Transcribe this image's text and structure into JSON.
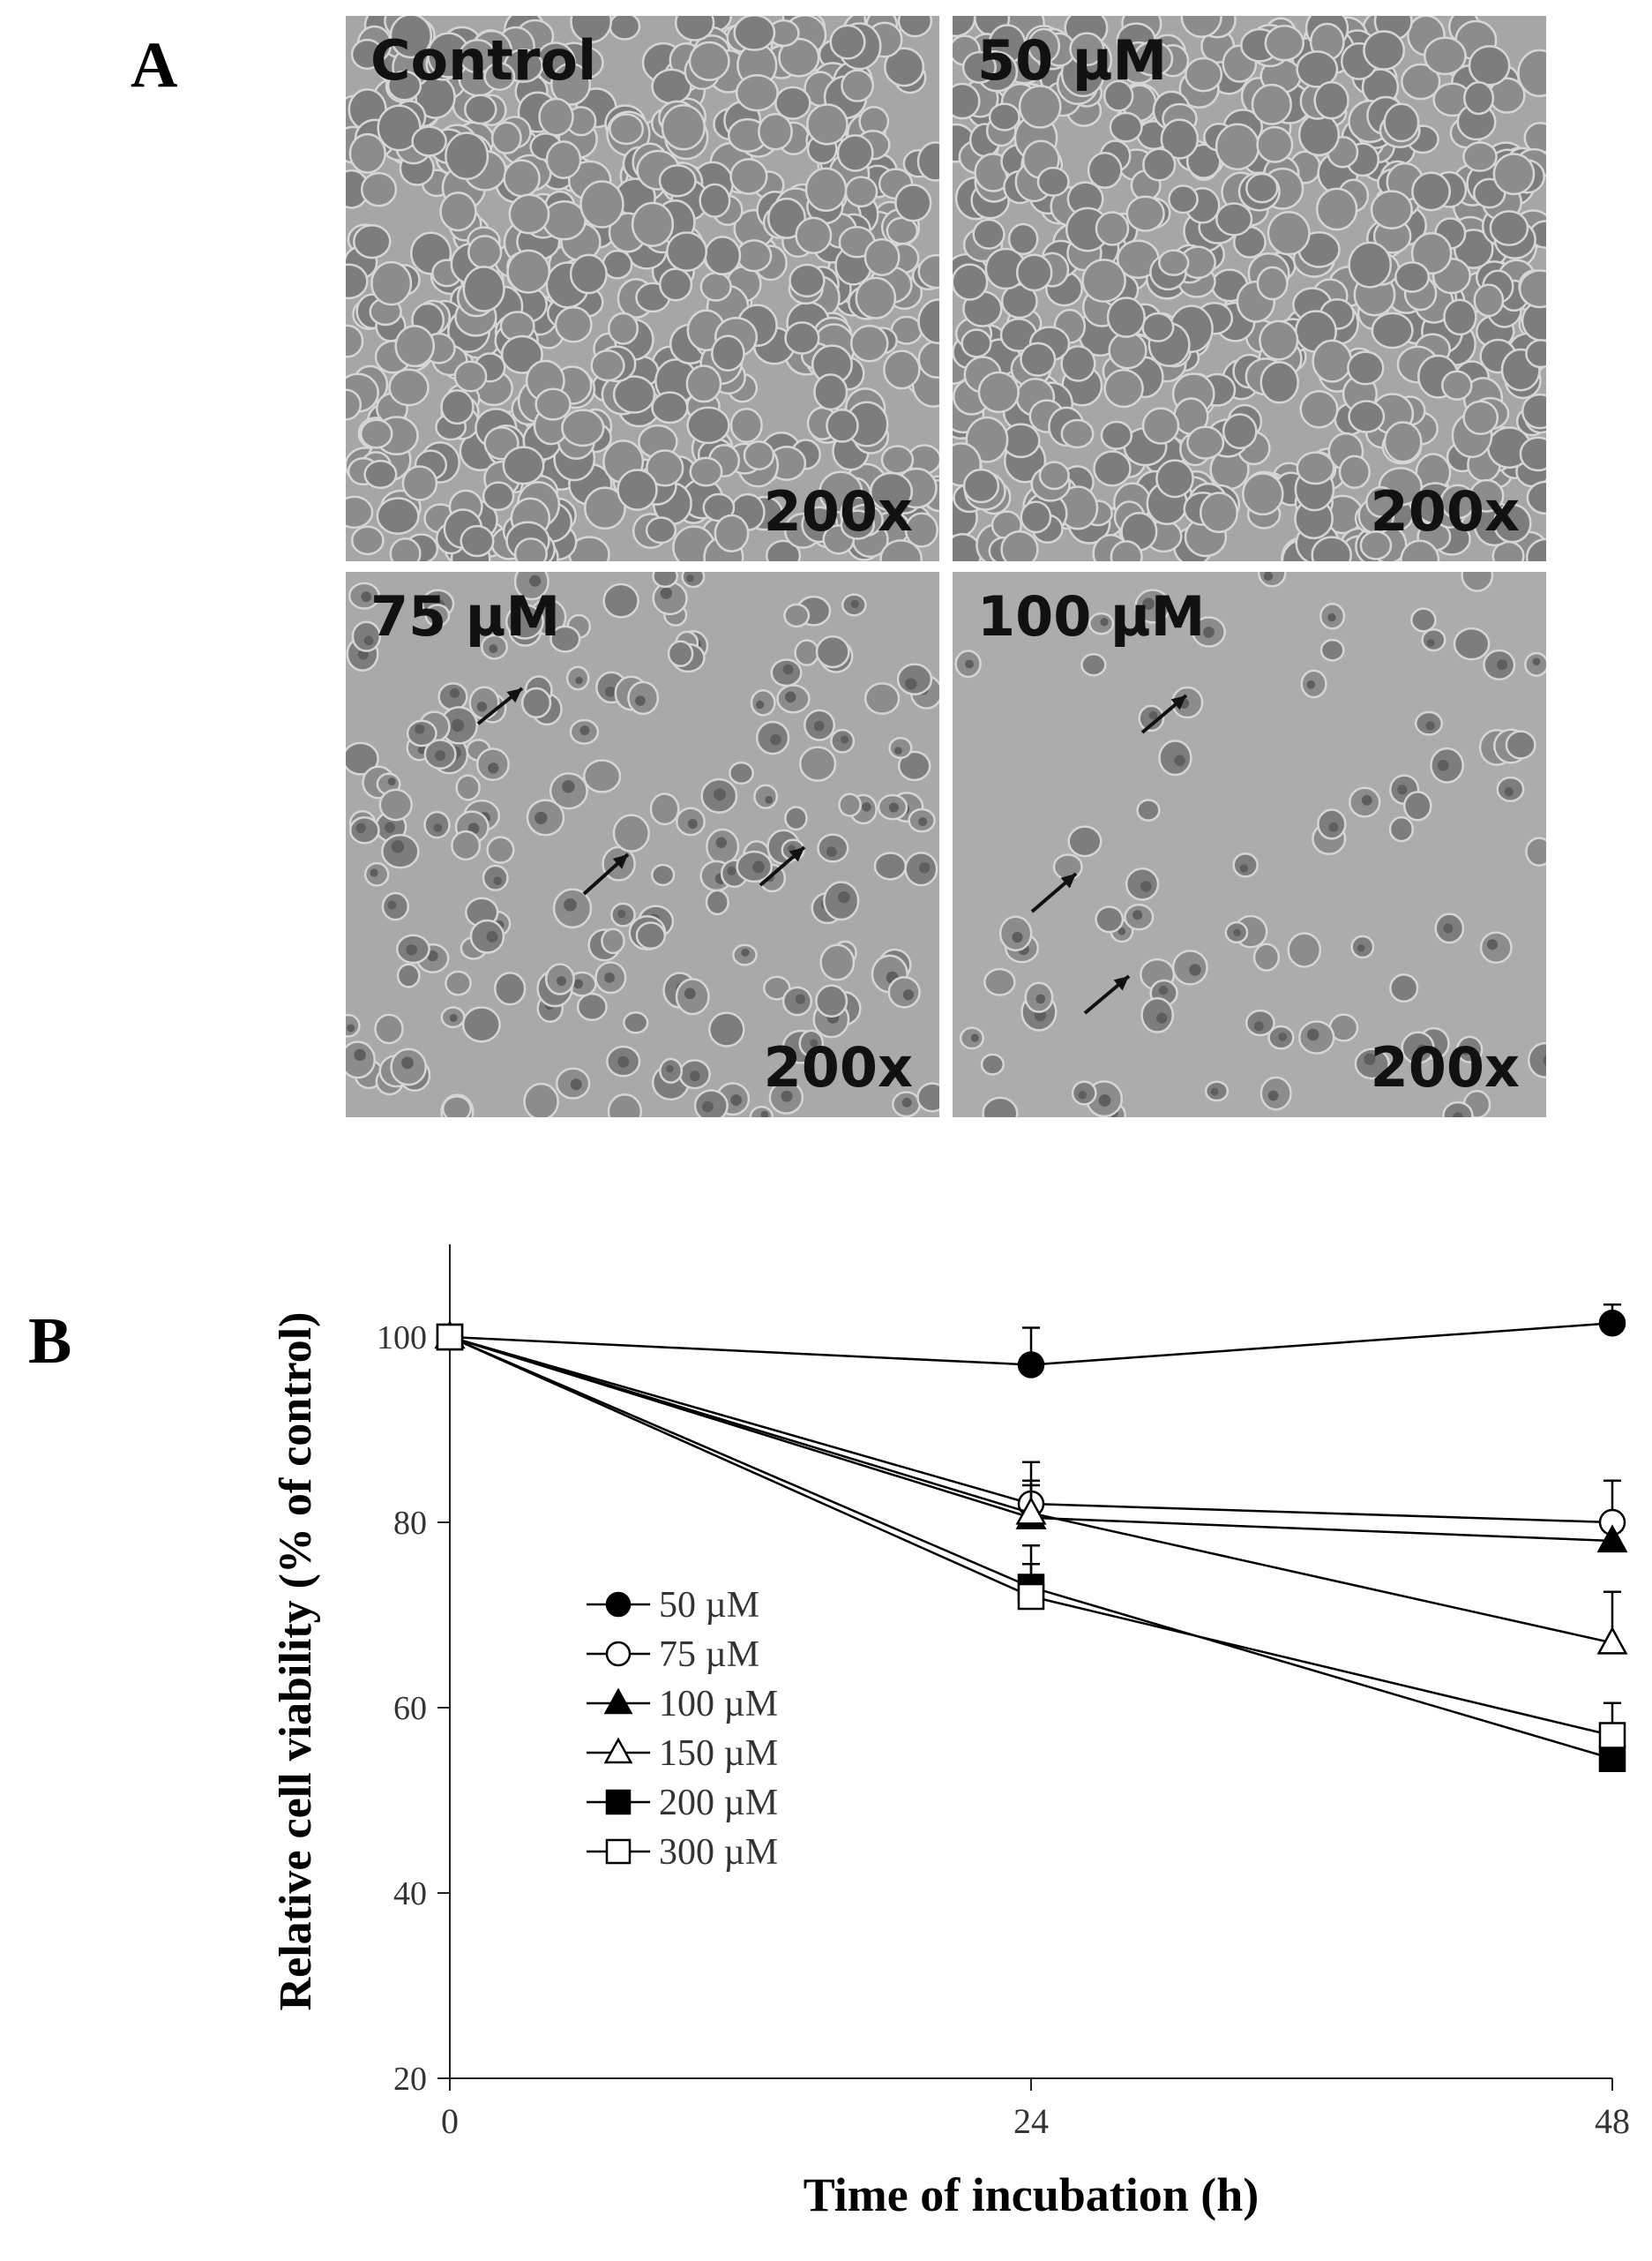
{
  "panel_labels": {
    "a": "A",
    "b": "B"
  },
  "micrographs": [
    {
      "condition": "Control",
      "magnification": "200x",
      "density": "dense"
    },
    {
      "condition": "50 µM",
      "magnification": "200x",
      "density": "dense"
    },
    {
      "condition": "75 µM",
      "magnification": "200x",
      "density": "medium"
    },
    {
      "condition": "100 µM",
      "magnification": "200x",
      "density": "sparse"
    }
  ],
  "chart_data": {
    "type": "line",
    "title": "",
    "xlabel": "Time of incubation (h)",
    "ylabel": "Relative cell viability (% of control)",
    "x": [
      0,
      24,
      48
    ],
    "xticks": [
      "0",
      "24",
      "48"
    ],
    "yticks": [
      "20",
      "40",
      "60",
      "80",
      "100"
    ],
    "xlim": [
      0,
      48
    ],
    "ylim": [
      20,
      110
    ],
    "grid": false,
    "legend_position": "left-center",
    "series": [
      {
        "name": "50 µM",
        "marker": "filled-circle",
        "values": [
          100,
          97,
          101.5
        ],
        "errors": [
          0,
          4,
          2
        ]
      },
      {
        "name": "75 µM",
        "marker": "open-circle",
        "values": [
          100,
          82,
          80
        ],
        "errors": [
          0,
          4.5,
          4.5
        ]
      },
      {
        "name": "100 µM",
        "marker": "filled-triangle",
        "values": [
          100,
          80.5,
          78
        ],
        "errors": [
          0,
          4,
          0
        ]
      },
      {
        "name": "150 µM",
        "marker": "open-triangle",
        "values": [
          100,
          81,
          67
        ],
        "errors": [
          0,
          3,
          5.5
        ]
      },
      {
        "name": "200 µM",
        "marker": "filled-square",
        "values": [
          100,
          73,
          54.5
        ],
        "errors": [
          0,
          4.5,
          3
        ]
      },
      {
        "name": "300 µM",
        "marker": "open-square",
        "values": [
          100,
          72,
          57
        ],
        "errors": [
          0,
          3.5,
          3.5
        ]
      }
    ]
  }
}
